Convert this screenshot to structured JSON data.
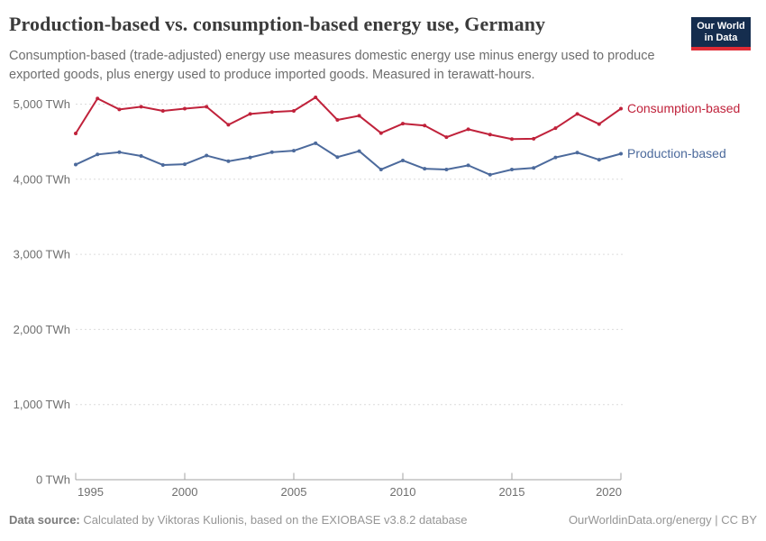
{
  "header": {
    "title": "Production-based vs. consumption-based energy use, Germany",
    "subtitle": "Consumption-based (trade-adjusted) energy use measures domestic energy use minus energy used to produce exported goods, plus energy used to produce imported goods. Measured in terawatt-hours.",
    "logo": {
      "line1": "Our World",
      "line2": "in Data",
      "bg_color": "#152D4E",
      "bar_color": "#E02B35"
    }
  },
  "chart_data": {
    "type": "line",
    "title": "Production-based vs. consumption-based energy use, Germany",
    "unit": "TWh",
    "x": [
      1995,
      1996,
      1997,
      1998,
      1999,
      2000,
      2001,
      2002,
      2003,
      2004,
      2005,
      2006,
      2007,
      2008,
      2009,
      2010,
      2011,
      2012,
      2013,
      2014,
      2015,
      2016,
      2017,
      2018,
      2019,
      2020
    ],
    "series": [
      {
        "name": "Consumption-based",
        "color": "#C0223B",
        "values": [
          4610,
          5075,
          4930,
          4965,
          4910,
          4940,
          4965,
          4725,
          4870,
          4895,
          4910,
          5090,
          4790,
          4845,
          4615,
          4740,
          4715,
          4560,
          4665,
          4595,
          4535,
          4540,
          4680,
          4870,
          4735,
          4940
        ]
      },
      {
        "name": "Production-based",
        "color": "#4C6A9C",
        "values": [
          4195,
          4330,
          4360,
          4310,
          4190,
          4200,
          4315,
          4240,
          4290,
          4360,
          4380,
          4480,
          4295,
          4375,
          4130,
          4250,
          4140,
          4130,
          4185,
          4060,
          4130,
          4150,
          4290,
          4355,
          4260,
          4340
        ]
      }
    ],
    "yticks": [
      0,
      1000,
      2000,
      3000,
      4000,
      5000
    ],
    "ytick_labels": [
      "0 TWh",
      "1,000 TWh",
      "2,000 TWh",
      "3,000 TWh",
      "4,000 TWh",
      "5,000 TWh"
    ],
    "xticks": [
      1995,
      2000,
      2005,
      2010,
      2015,
      2020
    ],
    "ylim": [
      0,
      5200
    ],
    "grid": "horizontal-dashed",
    "legend_position": "end-of-line",
    "colors": {
      "grid": "#dcdcdc",
      "axis": "#a3a3a3",
      "tick_text": "#6f6f6f"
    }
  },
  "footer": {
    "source_label": "Data source:",
    "source_text": "Calculated by Viktoras Kulionis, based on the EXIOBASE v3.8.2 database",
    "credit": "OurWorldinData.org/energy | CC BY"
  }
}
